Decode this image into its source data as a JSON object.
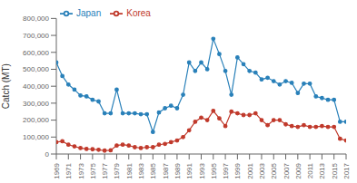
{
  "chart_data": {
    "type": "line",
    "ylabel": "Catch (MT)",
    "x": [
      1969,
      1970,
      1971,
      1972,
      1973,
      1974,
      1975,
      1976,
      1977,
      1978,
      1979,
      1980,
      1981,
      1982,
      1983,
      1984,
      1985,
      1986,
      1987,
      1988,
      1989,
      1990,
      1991,
      1992,
      1993,
      1994,
      1995,
      1996,
      1997,
      1998,
      1999,
      2000,
      2001,
      2002,
      2003,
      2004,
      2005,
      2006,
      2007,
      2008,
      2009,
      2010,
      2011,
      2012,
      2013,
      2014,
      2015,
      2016,
      2017
    ],
    "series": [
      {
        "name": "Korea",
        "color": "#c0392b",
        "marker": "circle",
        "values": [
          70000,
          75000,
          55000,
          45000,
          35000,
          30000,
          28000,
          25000,
          20000,
          22000,
          50000,
          55000,
          50000,
          40000,
          35000,
          40000,
          40000,
          55000,
          60000,
          70000,
          80000,
          100000,
          140000,
          190000,
          215000,
          200000,
          255000,
          210000,
          165000,
          250000,
          240000,
          230000,
          230000,
          240000,
          200000,
          170000,
          200000,
          200000,
          175000,
          165000,
          160000,
          170000,
          160000,
          160000,
          165000,
          160000,
          160000,
          90000,
          80000
        ]
      },
      {
        "name": "Japan",
        "color": "#2980b9",
        "marker": "circle",
        "values": [
          540000,
          460000,
          410000,
          380000,
          345000,
          340000,
          320000,
          310000,
          240000,
          240000,
          380000,
          240000,
          240000,
          240000,
          235000,
          235000,
          130000,
          245000,
          270000,
          285000,
          270000,
          350000,
          540000,
          490000,
          540000,
          500000,
          680000,
          590000,
          490000,
          350000,
          570000,
          530000,
          490000,
          480000,
          440000,
          450000,
          430000,
          410000,
          430000,
          420000,
          360000,
          415000,
          415000,
          340000,
          330000,
          320000,
          320000,
          190000,
          190000
        ]
      }
    ],
    "xlim": [
      1969,
      2017
    ],
    "xticks": [
      1969,
      1971,
      1973,
      1975,
      1977,
      1979,
      1981,
      1983,
      1985,
      1987,
      1989,
      1991,
      1993,
      1995,
      1997,
      1999,
      2001,
      2003,
      2005,
      2007,
      2009,
      2011,
      2013,
      2015,
      2017
    ],
    "ylim": [
      0,
      800000
    ],
    "yticks": [
      0,
      {
        "value": 100000,
        "label": "100,000"
      },
      {
        "value": 200000,
        "label": "200,000"
      },
      {
        "value": 300000,
        "label": "300,000"
      },
      {
        "value": 400000,
        "label": "400,000"
      },
      {
        "value": 500000,
        "label": "500,000"
      },
      {
        "value": 600000,
        "label": "600,000"
      },
      {
        "value": 700000,
        "label": "700,000"
      },
      {
        "value": 800000,
        "label": "800,000"
      }
    ],
    "legend": "upper left",
    "grid": false
  }
}
